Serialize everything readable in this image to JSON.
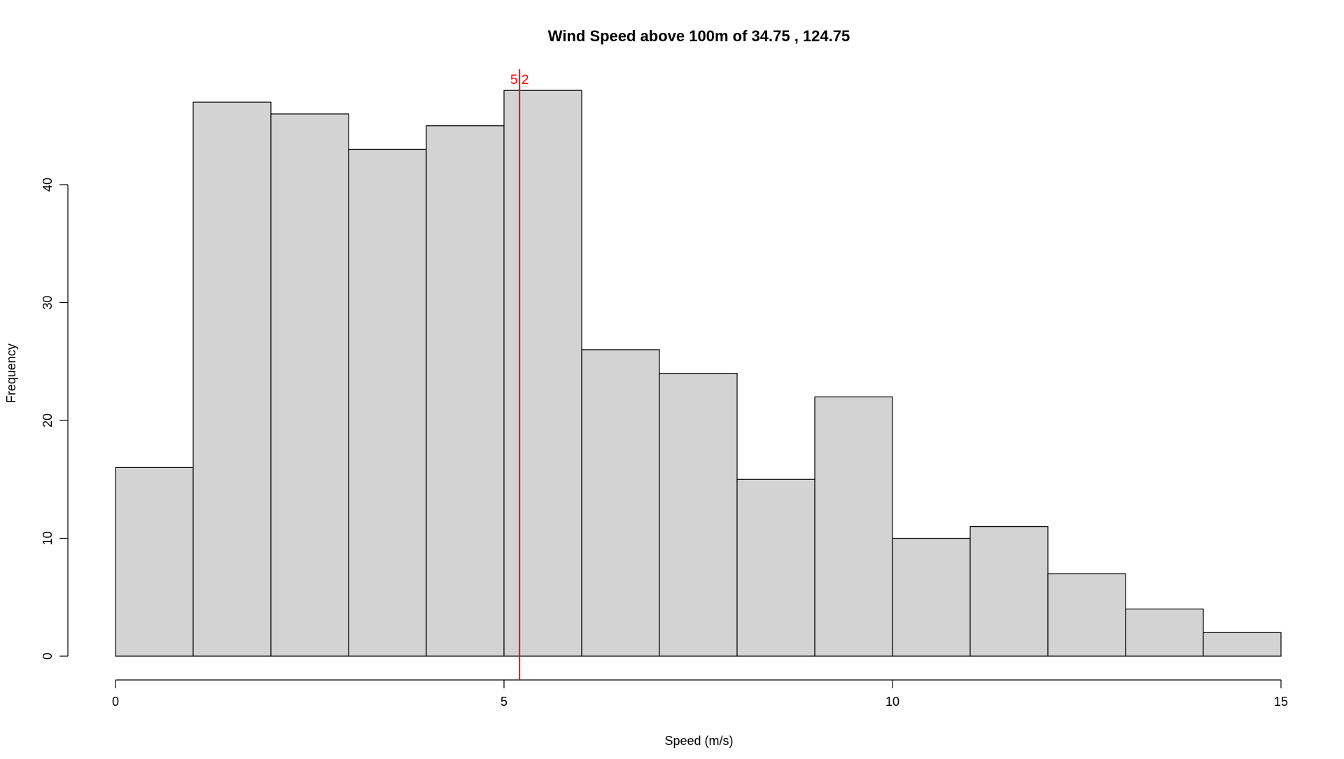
{
  "chart_data": {
    "type": "bar",
    "title": "Wind Speed above 100m of 34.75 , 124.75",
    "xlabel": "Speed (m/s)",
    "ylabel": "Frequency",
    "bins": [
      [
        0,
        1
      ],
      [
        1,
        2
      ],
      [
        2,
        3
      ],
      [
        3,
        4
      ],
      [
        4,
        5
      ],
      [
        5,
        6
      ],
      [
        6,
        7
      ],
      [
        7,
        8
      ],
      [
        8,
        9
      ],
      [
        9,
        10
      ],
      [
        10,
        11
      ],
      [
        11,
        12
      ],
      [
        12,
        13
      ],
      [
        13,
        14
      ],
      [
        14,
        15
      ]
    ],
    "values": [
      16,
      47,
      46,
      43,
      45,
      48,
      26,
      24,
      15,
      22,
      10,
      11,
      7,
      4,
      2
    ],
    "xlim": [
      0,
      15
    ],
    "ylim": [
      0,
      48
    ],
    "x_ticks": [
      0,
      5,
      10,
      15
    ],
    "y_ticks": [
      0,
      10,
      20,
      30,
      40
    ],
    "grid": false,
    "bar_fill": "#d3d3d3",
    "bar_stroke": "#000000",
    "reference_line": {
      "x": 5.2,
      "label": "5.2",
      "color": "#ff0000"
    }
  }
}
